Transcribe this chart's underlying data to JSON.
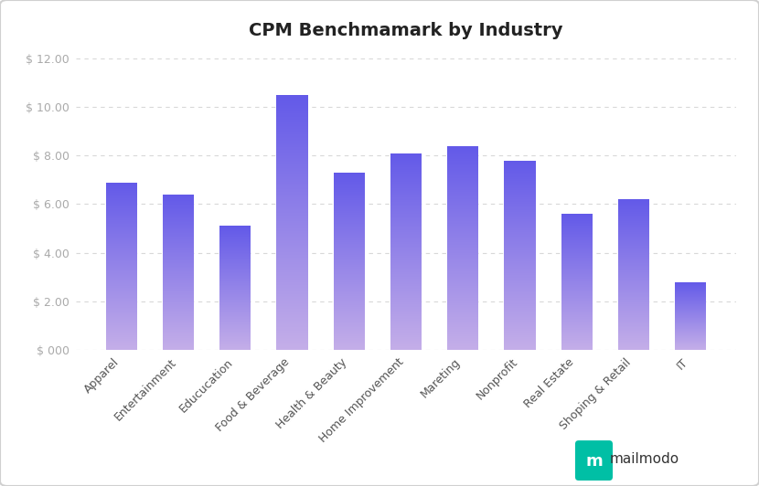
{
  "title": "CPM Benchmamark by Industry",
  "categories": [
    "Apparel",
    "Entertainment",
    "Educucation",
    "Food & Beverage",
    "Health & Beauty",
    "Home Improvement",
    "Mareting",
    "Nonprofit",
    "Real Estate",
    "Shoping & Retail",
    "IT"
  ],
  "values": [
    6.9,
    6.4,
    5.1,
    10.5,
    7.3,
    8.1,
    8.4,
    7.8,
    5.6,
    6.2,
    2.8
  ],
  "bar_color_top": "#6259E8",
  "bar_color_bottom": "#C4AEE8",
  "ylim": [
    0,
    12
  ],
  "yticks": [
    0,
    2,
    4,
    6,
    8,
    10,
    12
  ],
  "ytick_labels": [
    "$ 000",
    "$ 2.00",
    "$ 4.00",
    "$ 6.00",
    "$ 8.00",
    "$ 10.00",
    "$ 12.00"
  ],
  "background_color": "#ffffff",
  "fig_background": "#f9f9f9",
  "grid_color": "#d8d8d8",
  "title_fontsize": 14,
  "tick_fontsize": 9,
  "bar_width": 0.55,
  "logo_text": "mailmodo",
  "icon_color": "#00BFA5",
  "border_color": "#d0d0d0"
}
